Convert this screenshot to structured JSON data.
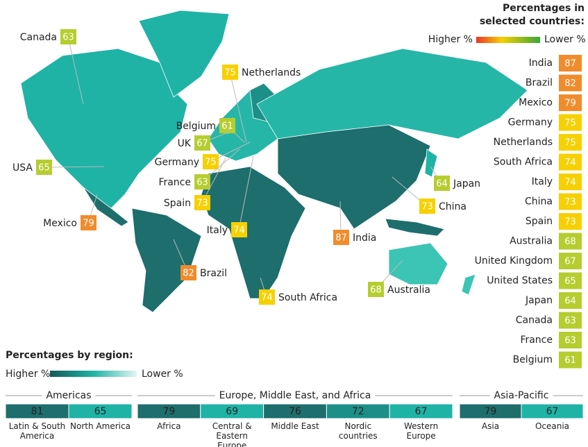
{
  "legend": {
    "title": "Percentages in selected countries:",
    "higher": "Higher %",
    "lower": "Lower %"
  },
  "countries": [
    {
      "name": "India",
      "value": 87,
      "color": "#f08c2c"
    },
    {
      "name": "Brazil",
      "value": 82,
      "color": "#f08c2c"
    },
    {
      "name": "Mexico",
      "value": 79,
      "color": "#f08c2c"
    },
    {
      "name": "Germany",
      "value": 75,
      "color": "#f7d000"
    },
    {
      "name": "Netherlands",
      "value": 75,
      "color": "#f7d000"
    },
    {
      "name": "South Africa",
      "value": 74,
      "color": "#f7d000"
    },
    {
      "name": "Italy",
      "value": 74,
      "color": "#f7d000"
    },
    {
      "name": "China",
      "value": 73,
      "color": "#f7d000"
    },
    {
      "name": "Spain",
      "value": 73,
      "color": "#f7d000"
    },
    {
      "name": "Australia",
      "value": 68,
      "color": "#b6cd2f"
    },
    {
      "name": "United Kingdom",
      "value": 67,
      "color": "#b6cd2f"
    },
    {
      "name": "United States",
      "value": 65,
      "color": "#b6cd2f"
    },
    {
      "name": "Japan",
      "value": 64,
      "color": "#b6cd2f"
    },
    {
      "name": "Canada",
      "value": 63,
      "color": "#b6cd2f"
    },
    {
      "name": "France",
      "value": 63,
      "color": "#b6cd2f"
    },
    {
      "name": "Belgium",
      "value": 61,
      "color": "#b6cd2f"
    }
  ],
  "map_labels": [
    {
      "name": "Canada",
      "value": 63,
      "color": "#b6cd2f"
    },
    {
      "name": "Netherlands",
      "value": 75,
      "color": "#f7d000"
    },
    {
      "name": "Belgium",
      "value": 61,
      "color": "#b6cd2f"
    },
    {
      "name": "UK",
      "value": 67,
      "color": "#b6cd2f"
    },
    {
      "name": "Germany",
      "value": 75,
      "color": "#f7d000"
    },
    {
      "name": "France",
      "value": 63,
      "color": "#b6cd2f"
    },
    {
      "name": "Spain",
      "value": 73,
      "color": "#f7d000"
    },
    {
      "name": "USA",
      "value": 65,
      "color": "#b6cd2f"
    },
    {
      "name": "Mexico",
      "value": 79,
      "color": "#f08c2c"
    },
    {
      "name": "Italy",
      "value": 74,
      "color": "#f7d000"
    },
    {
      "name": "Brazil",
      "value": 82,
      "color": "#f08c2c"
    },
    {
      "name": "South Africa",
      "value": 74,
      "color": "#f7d000"
    },
    {
      "name": "India",
      "value": 87,
      "color": "#f08c2c"
    },
    {
      "name": "Japan",
      "value": 64,
      "color": "#b6cd2f"
    },
    {
      "name": "China",
      "value": 73,
      "color": "#f7d000"
    },
    {
      "name": "Australia",
      "value": 68,
      "color": "#b6cd2f"
    }
  ],
  "regions": {
    "title": "Percentages by region:",
    "higher": "Higher %",
    "lower": "Lower %",
    "groups": [
      {
        "name": "Americas",
        "items": [
          {
            "name": "Latin & South America",
            "value": 81,
            "color": "#1d6e6d"
          },
          {
            "name": "North America",
            "value": 65,
            "color": "#1fb3a6"
          }
        ]
      },
      {
        "name": "Europe, Middle East, and Africa",
        "items": [
          {
            "name": "Africa",
            "value": 79,
            "color": "#1d6e6d"
          },
          {
            "name": "Central & Eastern Europe",
            "value": 69,
            "color": "#1fb3a6"
          },
          {
            "name": "Middle East",
            "value": 76,
            "color": "#1d6e6d"
          },
          {
            "name": "Nordic countries",
            "value": 72,
            "color": "#1b8f88"
          },
          {
            "name": "Western Europe",
            "value": 67,
            "color": "#1fb3a6"
          }
        ]
      },
      {
        "name": "Asia-Pacific",
        "items": [
          {
            "name": "Asia",
            "value": 79,
            "color": "#1d6e6d"
          },
          {
            "name": "Oceania",
            "value": 67,
            "color": "#1fb3a6"
          }
        ]
      }
    ]
  }
}
